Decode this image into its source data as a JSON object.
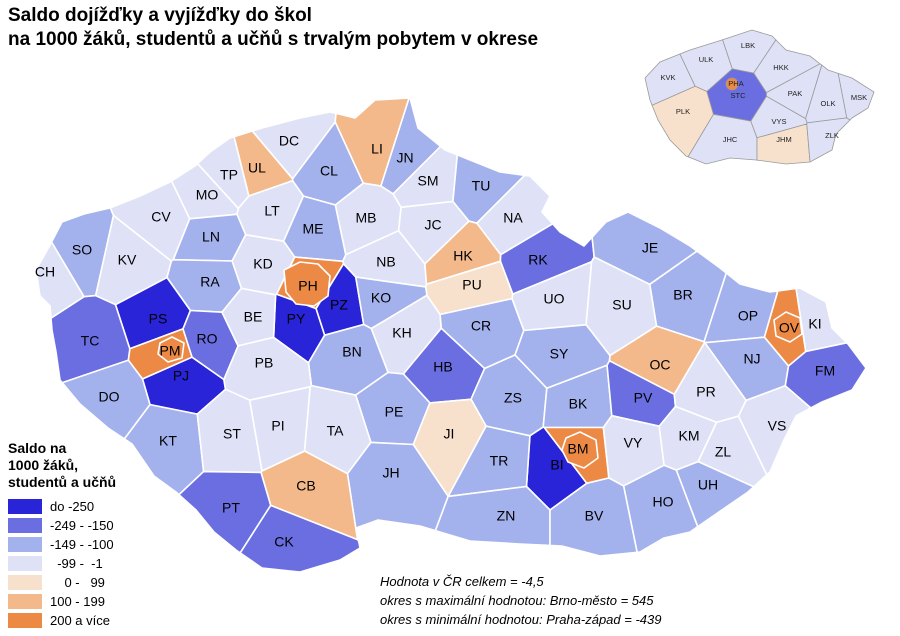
{
  "title": {
    "line1": "Saldo dojížďky a vyjížďky do škol",
    "line2": "na 1000 žáků, studentů a učňů s trvalým pobytem v okrese"
  },
  "legend": {
    "title_line1": "Saldo na",
    "title_line2": "1000 žáků,",
    "title_line3": "studentů a učňů",
    "classes": [
      {
        "label": "do -250",
        "color": "#2a24d9"
      },
      {
        "label": "-249 - -150",
        "color": "#6a6ee0"
      },
      {
        "label": "-149 - -100",
        "color": "#a3b1ec"
      },
      {
        "label": "  -99 -  -1",
        "color": "#dfe2f6"
      },
      {
        "label": "    0 -   99",
        "color": "#f7e1cd"
      },
      {
        "label": "100 - 199",
        "color": "#f3b98b"
      },
      {
        "label": "200 a více",
        "color": "#ec8a45"
      }
    ]
  },
  "notes": {
    "total": "Hodnota v ČR celkem = -4,5",
    "max": "okres s maximální hodnotou: Brno-město = 545",
    "min": "okres s minimální hodnotou: Praha-západ = -439"
  },
  "districts": [
    {
      "code": "CH",
      "cls": 3
    },
    {
      "code": "SO",
      "cls": 2
    },
    {
      "code": "KV",
      "cls": 3
    },
    {
      "code": "CV",
      "cls": 3
    },
    {
      "code": "MO",
      "cls": 3
    },
    {
      "code": "TP",
      "cls": 3
    },
    {
      "code": "UL",
      "cls": 5
    },
    {
      "code": "DC",
      "cls": 3
    },
    {
      "code": "LI",
      "cls": 5
    },
    {
      "code": "JN",
      "cls": 2
    },
    {
      "code": "CL",
      "cls": 2
    },
    {
      "code": "LT",
      "cls": 3
    },
    {
      "code": "ME",
      "cls": 2
    },
    {
      "code": "MB",
      "cls": 3
    },
    {
      "code": "SM",
      "cls": 3
    },
    {
      "code": "TU",
      "cls": 2
    },
    {
      "code": "NA",
      "cls": 3
    },
    {
      "code": "JC",
      "cls": 3
    },
    {
      "code": "HK",
      "cls": 5
    },
    {
      "code": "RK",
      "cls": 1
    },
    {
      "code": "LN",
      "cls": 2
    },
    {
      "code": "KD",
      "cls": 3
    },
    {
      "code": "RA",
      "cls": 2
    },
    {
      "code": "NB",
      "cls": 3
    },
    {
      "code": "PU",
      "cls": 4
    },
    {
      "code": "PH",
      "cls": 6
    },
    {
      "code": "PY",
      "cls": 0
    },
    {
      "code": "PZ",
      "cls": 0
    },
    {
      "code": "KO",
      "cls": 2
    },
    {
      "code": "PS",
      "cls": 0
    },
    {
      "code": "PM",
      "cls": 6
    },
    {
      "code": "PJ",
      "cls": 0
    },
    {
      "code": "RO",
      "cls": 1
    },
    {
      "code": "TC",
      "cls": 1
    },
    {
      "code": "BE",
      "cls": 3
    },
    {
      "code": "KH",
      "cls": 3
    },
    {
      "code": "UO",
      "cls": 3
    },
    {
      "code": "SU",
      "cls": 3
    },
    {
      "code": "JE",
      "cls": 2
    },
    {
      "code": "BR",
      "cls": 2
    },
    {
      "code": "OP",
      "cls": 2
    },
    {
      "code": "OV",
      "cls": 6
    },
    {
      "code": "KI",
      "cls": 3
    },
    {
      "code": "CR",
      "cls": 2
    },
    {
      "code": "BN",
      "cls": 2
    },
    {
      "code": "PB",
      "cls": 3
    },
    {
      "code": "HB",
      "cls": 1
    },
    {
      "code": "SY",
      "cls": 2
    },
    {
      "code": "OC",
      "cls": 5
    },
    {
      "code": "NJ",
      "cls": 2
    },
    {
      "code": "FM",
      "cls": 1
    },
    {
      "code": "DO",
      "cls": 2
    },
    {
      "code": "PE",
      "cls": 2
    },
    {
      "code": "ZS",
      "cls": 2
    },
    {
      "code": "BK",
      "cls": 2
    },
    {
      "code": "PV",
      "cls": 1
    },
    {
      "code": "PR",
      "cls": 3
    },
    {
      "code": "KT",
      "cls": 2
    },
    {
      "code": "ST",
      "cls": 3
    },
    {
      "code": "PI",
      "cls": 3
    },
    {
      "code": "TA",
      "cls": 3
    },
    {
      "code": "JI",
      "cls": 4
    },
    {
      "code": "BI",
      "cls": 0
    },
    {
      "code": "BM",
      "cls": 6
    },
    {
      "code": "VY",
      "cls": 3
    },
    {
      "code": "KM",
      "cls": 3
    },
    {
      "code": "VS",
      "cls": 3
    },
    {
      "code": "ZL",
      "cls": 3
    },
    {
      "code": "JH",
      "cls": 2
    },
    {
      "code": "TR",
      "cls": 2
    },
    {
      "code": "CB",
      "cls": 5
    },
    {
      "code": "PT",
      "cls": 1
    },
    {
      "code": "UH",
      "cls": 2
    },
    {
      "code": "HO",
      "cls": 2
    },
    {
      "code": "ZN",
      "cls": 2
    },
    {
      "code": "BV",
      "cls": 2
    },
    {
      "code": "CK",
      "cls": 1
    }
  ],
  "regions": [
    {
      "code": "KVK",
      "cls": 3
    },
    {
      "code": "ULK",
      "cls": 3
    },
    {
      "code": "LBK",
      "cls": 3
    },
    {
      "code": "HKK",
      "cls": 3
    },
    {
      "code": "PLK",
      "cls": 4
    },
    {
      "code": "STC",
      "cls": 1
    },
    {
      "code": "PHA",
      "cls": 6
    },
    {
      "code": "PAK",
      "cls": 3
    },
    {
      "code": "OLK",
      "cls": 3
    },
    {
      "code": "MSK",
      "cls": 3
    },
    {
      "code": "JHC",
      "cls": 3
    },
    {
      "code": "VYS",
      "cls": 3
    },
    {
      "code": "JHM",
      "cls": 4
    },
    {
      "code": "ZLK",
      "cls": 3
    }
  ]
}
